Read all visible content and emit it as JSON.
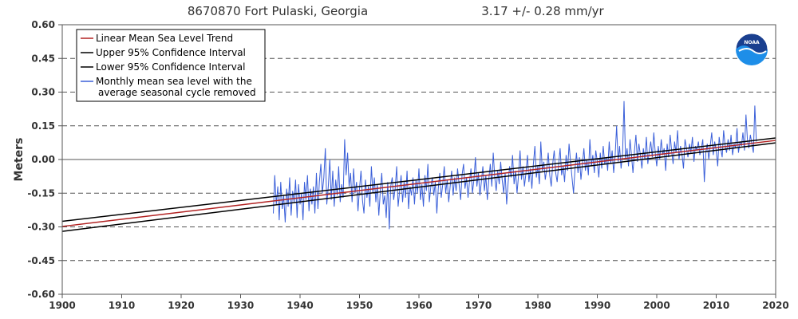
{
  "header": {
    "station": "8670870 Fort Pulaski, Georgia",
    "trend": "3.17 +/-  0.28 mm/yr"
  },
  "logo_text": "NOAA",
  "colors": {
    "trend": "#b22222",
    "confidence": "#000000",
    "monthly": "#3a5fd9",
    "grid": "#555555"
  },
  "chart_data": {
    "type": "line",
    "title": "8670870 Fort Pulaski, Georgia",
    "subtitle": "3.17 +/-  0.28 mm/yr",
    "xlabel": "",
    "ylabel": "Meters",
    "xlim": [
      1900,
      2020
    ],
    "ylim": [
      -0.6,
      0.6
    ],
    "x_ticks": [
      1900,
      1910,
      1920,
      1930,
      1940,
      1950,
      1960,
      1970,
      1980,
      1990,
      2000,
      2010,
      2020
    ],
    "y_ticks": [
      "-0.60",
      "-0.45",
      "-0.30",
      "-0.15",
      "0.00",
      "0.15",
      "0.30",
      "0.45",
      "0.60"
    ],
    "grid": "horizontal dashed",
    "legend_placement": "top-left",
    "legend": [
      "Linear Mean Sea Level Trend",
      "Upper 95% Confidence Interval",
      "Lower 95% Confidence Interval",
      "Monthly mean sea level with the",
      "average seasonal cycle removed"
    ],
    "series": [
      {
        "name": "Linear Mean Sea Level Trend",
        "kind": "trend",
        "x": [
          1900,
          2020
        ],
        "y": [
          -0.298,
          0.085
        ]
      },
      {
        "name": "Upper 95% Confidence Interval",
        "kind": "upper",
        "x": [
          1900,
          2020
        ],
        "y": [
          -0.275,
          0.096
        ]
      },
      {
        "name": "Lower 95% Confidence Interval",
        "kind": "lower",
        "x": [
          1900,
          2020
        ],
        "y": [
          -0.32,
          0.074
        ]
      },
      {
        "name": "Monthly mean sea level with the average seasonal cycle removed",
        "kind": "monthly",
        "x_start": 1935.5,
        "x_end": 2016.2,
        "step": 0.25,
        "y": [
          -0.24,
          -0.07,
          -0.2,
          -0.12,
          -0.27,
          -0.1,
          -0.22,
          -0.16,
          -0.28,
          -0.13,
          -0.21,
          -0.08,
          -0.25,
          -0.14,
          -0.19,
          -0.09,
          -0.26,
          -0.11,
          -0.2,
          -0.15,
          -0.27,
          -0.1,
          -0.18,
          -0.07,
          -0.23,
          -0.13,
          -0.2,
          -0.12,
          -0.24,
          -0.06,
          -0.22,
          -0.1,
          -0.02,
          -0.15,
          -0.08,
          0.05,
          -0.2,
          -0.12,
          0.0,
          -0.18,
          -0.05,
          -0.21,
          -0.09,
          -0.16,
          -0.03,
          -0.19,
          -0.11,
          -0.17,
          0.09,
          -0.07,
          0.03,
          -0.12,
          -0.06,
          -0.19,
          -0.04,
          -0.15,
          -0.1,
          -0.23,
          -0.13,
          -0.05,
          -0.18,
          -0.24,
          -0.09,
          -0.17,
          -0.12,
          -0.21,
          -0.03,
          -0.15,
          -0.08,
          -0.19,
          -0.11,
          -0.25,
          -0.14,
          -0.06,
          -0.2,
          -0.16,
          -0.26,
          -0.1,
          -0.31,
          -0.12,
          -0.08,
          -0.18,
          -0.13,
          -0.03,
          -0.21,
          -0.14,
          -0.07,
          -0.19,
          -0.1,
          -0.17,
          -0.05,
          -0.22,
          -0.12,
          -0.16,
          -0.08,
          -0.2,
          -0.09,
          -0.15,
          -0.04,
          -0.18,
          -0.11,
          -0.21,
          -0.07,
          -0.14,
          -0.02,
          -0.19,
          -0.12,
          -0.08,
          -0.16,
          -0.1,
          -0.24,
          -0.13,
          -0.06,
          -0.17,
          -0.11,
          -0.03,
          -0.15,
          -0.09,
          -0.19,
          -0.12,
          -0.05,
          -0.16,
          -0.08,
          -0.14,
          -0.04,
          -0.11,
          -0.18,
          -0.07,
          -0.02,
          -0.13,
          -0.08,
          -0.17,
          -0.1,
          -0.04,
          -0.15,
          -0.09,
          0.01,
          -0.12,
          -0.06,
          -0.16,
          -0.1,
          -0.03,
          -0.14,
          -0.07,
          -0.18,
          -0.09,
          -0.02,
          -0.12,
          0.03,
          -0.08,
          -0.14,
          -0.05,
          -0.11,
          -0.01,
          -0.09,
          -0.15,
          -0.06,
          -0.2,
          -0.1,
          -0.03,
          -0.08,
          0.02,
          -0.11,
          -0.05,
          -0.15,
          -0.07,
          0.04,
          -0.09,
          -0.03,
          -0.12,
          -0.06,
          0.02,
          -0.1,
          -0.04,
          -0.13,
          -0.02,
          0.06,
          -0.08,
          -0.03,
          -0.11,
          0.08,
          -0.05,
          -0.01,
          -0.09,
          -0.04,
          0.03,
          -0.07,
          -0.12,
          -0.02,
          0.04,
          -0.06,
          -0.1,
          -0.02,
          0.05,
          -0.07,
          -0.03,
          -0.1,
          0.02,
          -0.05,
          0.07,
          -0.01,
          -0.08,
          -0.15,
          -0.04,
          0.03,
          -0.06,
          0.01,
          -0.09,
          -0.02,
          0.05,
          -0.05,
          0.0,
          -0.07,
          0.09,
          -0.03,
          0.02,
          -0.06,
          0.04,
          -0.01,
          -0.08,
          0.03,
          -0.04,
          0.06,
          -0.02,
          0.01,
          -0.05,
          0.08,
          -0.02,
          0.04,
          -0.06,
          0.02,
          0.15,
          -0.01,
          0.06,
          -0.04,
          0.03,
          0.26,
          0.0,
          0.05,
          -0.03,
          0.09,
          0.02,
          -0.06,
          0.04,
          0.11,
          -0.01,
          0.07,
          0.02,
          -0.04,
          0.05,
          0.0,
          0.1,
          -0.02,
          0.04,
          0.08,
          0.01,
          0.12,
          0.03,
          -0.03,
          0.06,
          0.0,
          0.09,
          0.02,
          0.05,
          -0.05,
          0.07,
          0.01,
          0.11,
          0.04,
          -0.02,
          0.08,
          0.03,
          0.13,
          0.0,
          0.06,
          0.02,
          -0.04,
          0.09,
          0.05,
          0.01,
          0.07,
          0.03,
          0.1,
          -0.01,
          0.06,
          0.04,
          0.08,
          0.02,
          0.05,
          0.09,
          -0.1,
          0.03,
          0.07,
          0.0,
          0.06,
          0.12,
          0.02,
          0.08,
          0.04,
          -0.03,
          0.1,
          0.05,
          0.01,
          0.13,
          0.06,
          0.03,
          0.09,
          0.04,
          0.11,
          0.02,
          0.07,
          0.05,
          0.14,
          0.03,
          0.08,
          0.06,
          0.12,
          0.04,
          0.2,
          0.09,
          0.05,
          0.11,
          0.07,
          0.03,
          0.24,
          0.08
        ]
      }
    ]
  }
}
